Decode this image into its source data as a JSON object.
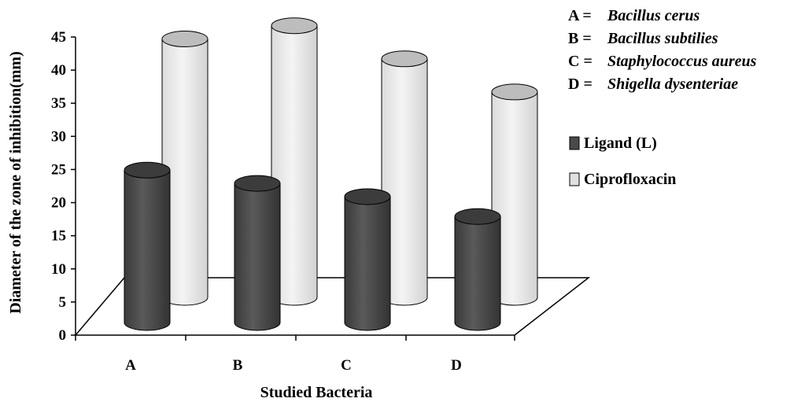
{
  "chart_data": {
    "type": "bar",
    "style": "3d-cylinder",
    "categories": [
      "A",
      "B",
      "C",
      "D"
    ],
    "series": [
      {
        "name": "Ligand (L)",
        "values": [
          23,
          21,
          19,
          16
        ],
        "color": "#4a4a4a"
      },
      {
        "name": "Ciprofloxacin",
        "values": [
          39,
          41,
          36,
          31
        ],
        "color": "#e8e8e8"
      }
    ],
    "xlabel": "Studied Bacteria",
    "ylabel": "Diameter of the zone of inhibition(mm)",
    "ylim": [
      0,
      45
    ],
    "yticks": [
      "0",
      "5",
      "10",
      "15",
      "20",
      "25",
      "30",
      "35",
      "40",
      "45"
    ],
    "grid": false,
    "legend_placement": "right",
    "category_key": [
      {
        "code": "A =",
        "name": "Bacillus cerus"
      },
      {
        "code": "B =",
        "name": "Bacillus subtilies"
      },
      {
        "code": "C =",
        "name": "Staphylococcus aureus"
      },
      {
        "code": "D =",
        "name": "Shigella dysenteriae"
      }
    ]
  }
}
